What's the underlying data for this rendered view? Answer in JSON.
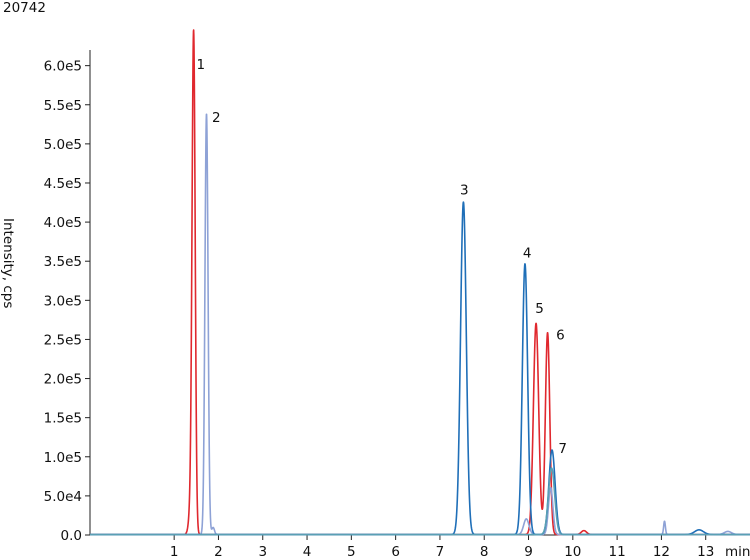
{
  "chart_data": {
    "type": "line",
    "title": "20742",
    "xlabel": "min",
    "ylabel": "Intensity, cps",
    "xlim": [
      -0.9,
      14.0
    ],
    "ylim": [
      0,
      620000
    ],
    "x_ticks": [
      1,
      2,
      3,
      4,
      5,
      6,
      7,
      8,
      9,
      10,
      11,
      12,
      13
    ],
    "x_tick_labels": [
      "1",
      "2",
      "3",
      "4",
      "5",
      "6",
      "7",
      "8",
      "9",
      "10",
      "11",
      "12",
      "13"
    ],
    "y_ticks": [
      0,
      50000,
      100000,
      150000,
      200000,
      250000,
      300000,
      350000,
      400000,
      450000,
      500000,
      550000,
      600000
    ],
    "y_tick_labels": [
      "0.0",
      "5.0e4",
      "1.0e5",
      "1.5e5",
      "2.0e5",
      "2.5e5",
      "3.0e5",
      "3.5e5",
      "4.0e5",
      "4.5e5",
      "5.0e5",
      "5.5e5",
      "6.0e5"
    ],
    "grid": false,
    "legend": "none",
    "series": [
      {
        "color": "#e0282e",
        "peaks": [
          {
            "rt": 1.44,
            "height": 605000,
            "width": 0.035
          },
          {
            "rt": 1.4,
            "height": 55000,
            "width": 0.05
          },
          {
            "rt": 9.17,
            "height": 270000,
            "width": 0.06
          },
          {
            "rt": 9.43,
            "height": 258000,
            "width": 0.05
          },
          {
            "rt": 10.25,
            "height": 5000,
            "width": 0.06
          }
        ]
      },
      {
        "color": "#8ea2d6",
        "peaks": [
          {
            "rt": 1.73,
            "height": 538000,
            "width": 0.035
          },
          {
            "rt": 1.88,
            "height": 9000,
            "width": 0.03
          },
          {
            "rt": 8.95,
            "height": 20000,
            "width": 0.06
          },
          {
            "rt": 9.5,
            "height": 60000,
            "width": 0.05
          },
          {
            "rt": 12.07,
            "height": 17000,
            "width": 0.02
          },
          {
            "rt": 13.5,
            "height": 4000,
            "width": 0.08
          }
        ]
      },
      {
        "color": "#1f6fb8",
        "peaks": [
          {
            "rt": 7.53,
            "height": 425000,
            "width": 0.065
          },
          {
            "rt": 8.92,
            "height": 346000,
            "width": 0.06
          },
          {
            "rt": 9.53,
            "height": 108000,
            "width": 0.07
          },
          {
            "rt": 12.85,
            "height": 6000,
            "width": 0.1
          }
        ]
      },
      {
        "color": "#5aa0b4",
        "peaks": [
          {
            "rt": 9.52,
            "height": 85000,
            "width": 0.07
          }
        ]
      }
    ],
    "annotations": [
      {
        "text": "1",
        "x": 1.6,
        "y": 596000
      },
      {
        "text": "2",
        "x": 1.95,
        "y": 528000
      },
      {
        "text": "3",
        "x": 7.55,
        "y": 435000
      },
      {
        "text": "4",
        "x": 8.97,
        "y": 355000
      },
      {
        "text": "5",
        "x": 9.25,
        "y": 284000
      },
      {
        "text": "6",
        "x": 9.72,
        "y": 250000
      },
      {
        "text": "7",
        "x": 9.77,
        "y": 105000
      }
    ]
  }
}
